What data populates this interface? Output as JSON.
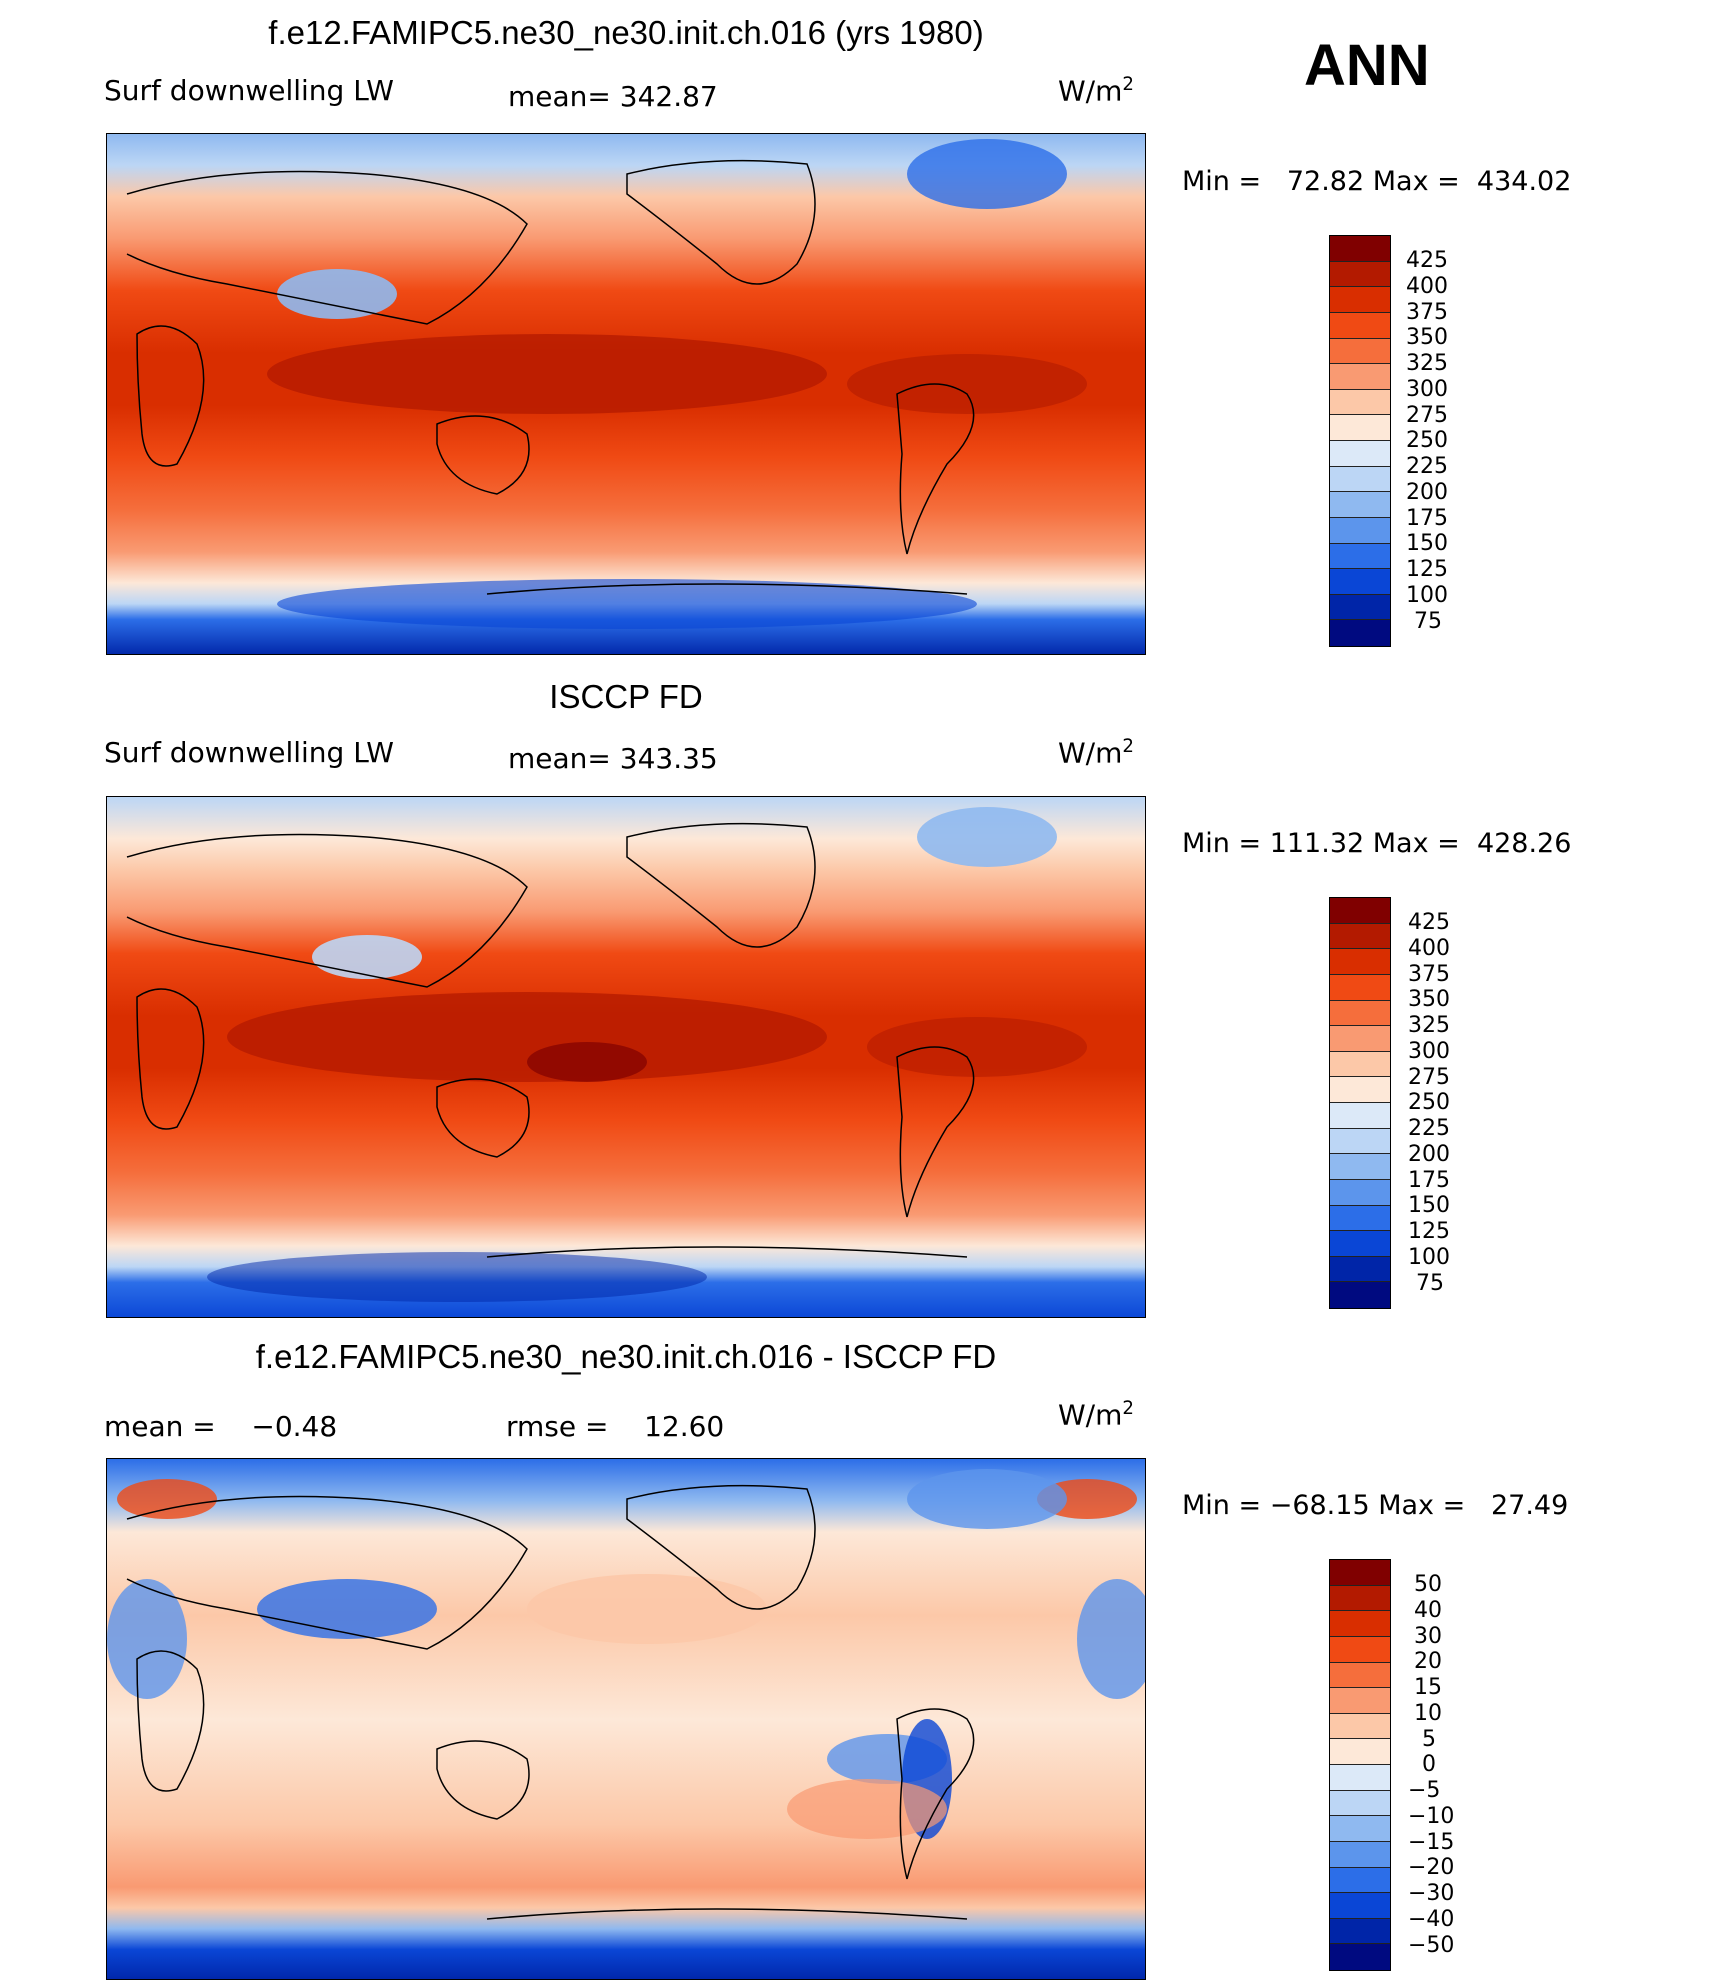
{
  "header": {
    "season": "ANN"
  },
  "units_prefix": "W/m",
  "units_exp": "2",
  "panels": [
    {
      "title": "f.e12.FAMIPC5.ne30_ne30.init.ch.016 (yrs 1980)",
      "left_label": "Surf downwelling LW",
      "center_label": "mean= 342.87",
      "minmax": "Min =   72.82 Max =  434.02"
    },
    {
      "title": "ISCCP FD",
      "left_label": "Surf downwelling LW",
      "center_label": "mean= 343.35",
      "minmax": "Min = 111.32 Max =  428.26"
    },
    {
      "title": "f.e12.FAMIPC5.ne30_ne30.init.ch.016 - ISCCP FD",
      "left_label": "mean =    −0.48",
      "center_label": "rmse =    12.60",
      "minmax": "Min = −68.15 Max =   27.49"
    }
  ],
  "colorbars": {
    "abs_levels": [
      "425",
      "400",
      "375",
      "350",
      "325",
      "300",
      "275",
      "250",
      "225",
      "200",
      "175",
      "150",
      "125",
      "100",
      "75"
    ],
    "abs_colors": [
      "#800000",
      "#b31a00",
      "#d92e00",
      "#f04a14",
      "#f56e3c",
      "#f99a72",
      "#fcc8a8",
      "#fde8d8",
      "#dce9f8",
      "#bcd6f5",
      "#8fb9f0",
      "#5c95ec",
      "#2c6ee8",
      "#0a46d6",
      "#0025a8",
      "#000a80"
    ],
    "diff_levels": [
      "50",
      "40",
      "30",
      "20",
      "15",
      "10",
      "5",
      "0",
      "−5",
      "−10",
      "−15",
      "−20",
      "−30",
      "−40",
      "−50"
    ],
    "diff_colors": [
      "#800000",
      "#b31a00",
      "#d92e00",
      "#f04a14",
      "#f56e3c",
      "#f99a72",
      "#fcc8a8",
      "#fde8d8",
      "#dce9f8",
      "#bcd6f5",
      "#8fb9f0",
      "#5c95ec",
      "#2c6ee8",
      "#0a46d6",
      "#0025a8",
      "#000a80"
    ]
  }
}
